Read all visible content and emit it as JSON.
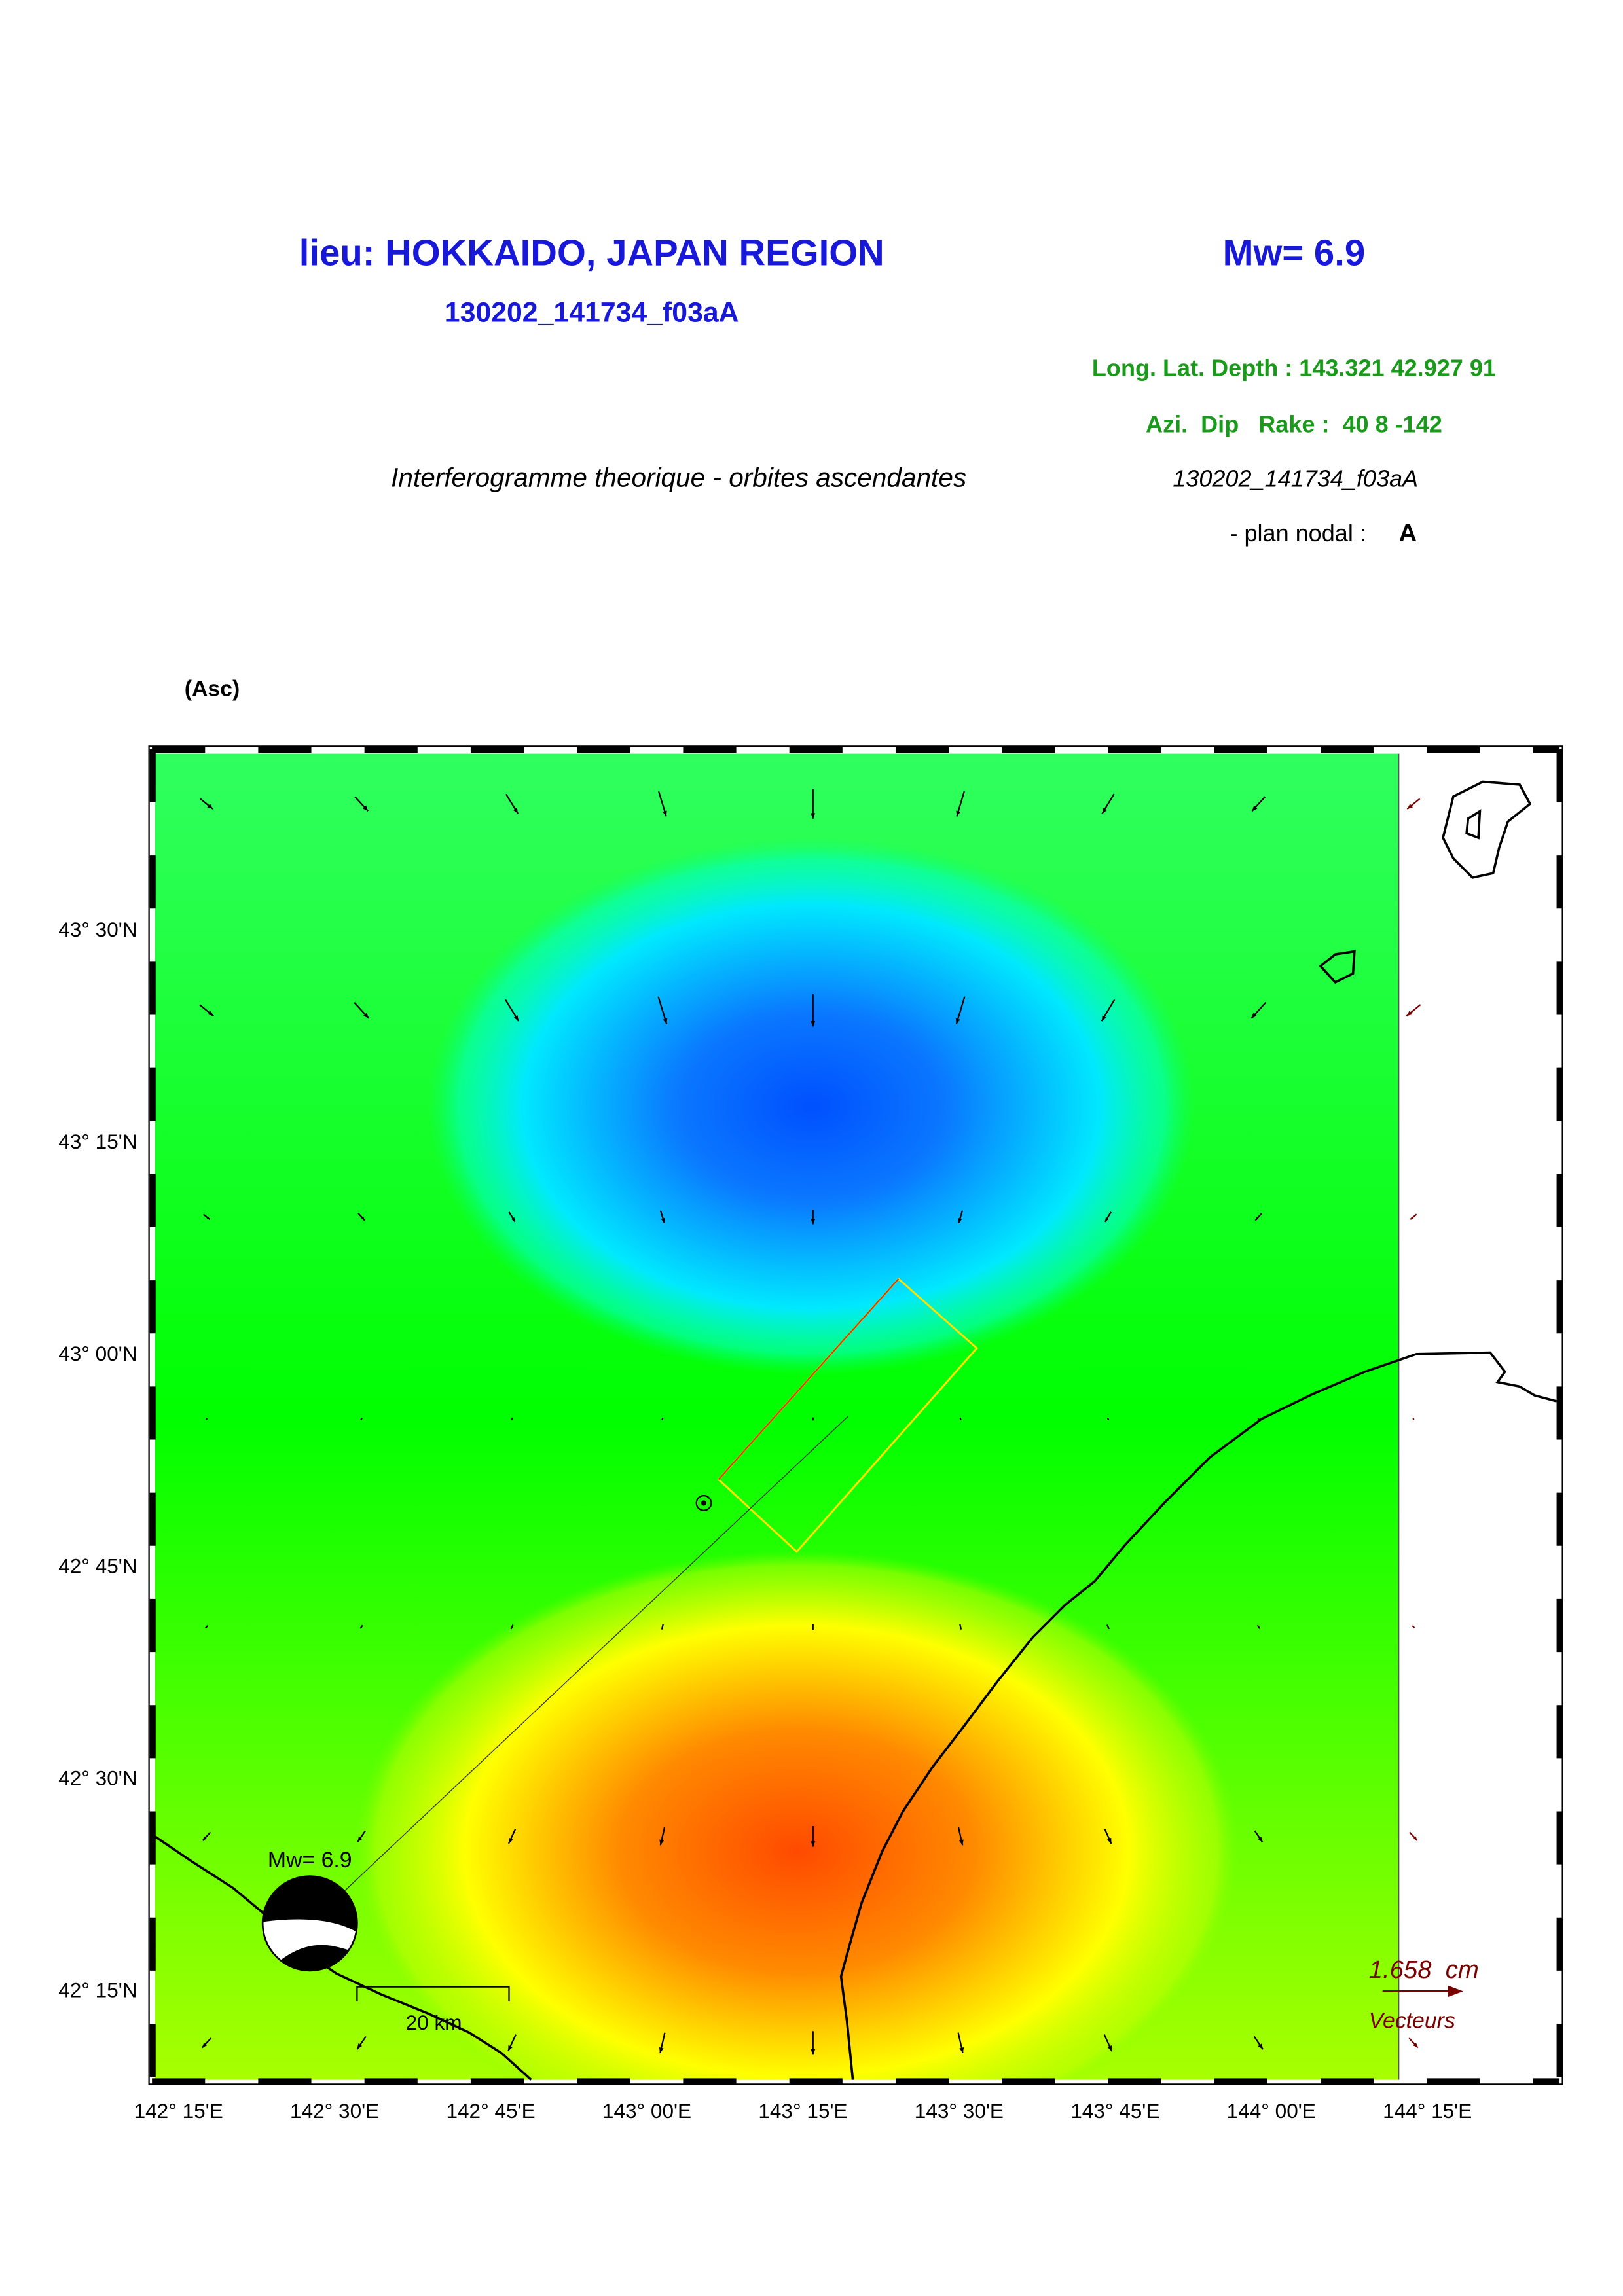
{
  "header": {
    "title": "lieu: HOKKAIDO, JAPAN REGION",
    "magnitude": "Mw= 6.9",
    "event_id": "130202_141734_f03aA",
    "location": "Long. Lat. Depth : 143.321 42.927 91",
    "mechanism": "Azi.  Dip   Rake :  40 8 -142",
    "subtitle": "Interferogramme theorique - orbites ascendantes",
    "event_id_2": "130202_141734_f03aA",
    "nodal_plane_label": "- plan nodal :",
    "nodal_plane": "A"
  },
  "map": {
    "panel_label": "(Asc)",
    "lat_labels": [
      "43° 30'N",
      "43° 15'N",
      "43° 00'N",
      "42° 45'N",
      "42° 30'N",
      "42° 15'N"
    ],
    "lon_labels": [
      "142° 15'E",
      "142° 30'E",
      "142° 45'E",
      "143° 00'E",
      "143° 15'E",
      "143° 30'E",
      "143° 45'E",
      "144° 00'E",
      "144° 15'E"
    ],
    "beachball_label": "Mw= 6.9",
    "scale_bar": "20 km",
    "vector_scale": "1.658  cm",
    "vector_label": "Vecteurs"
  }
}
